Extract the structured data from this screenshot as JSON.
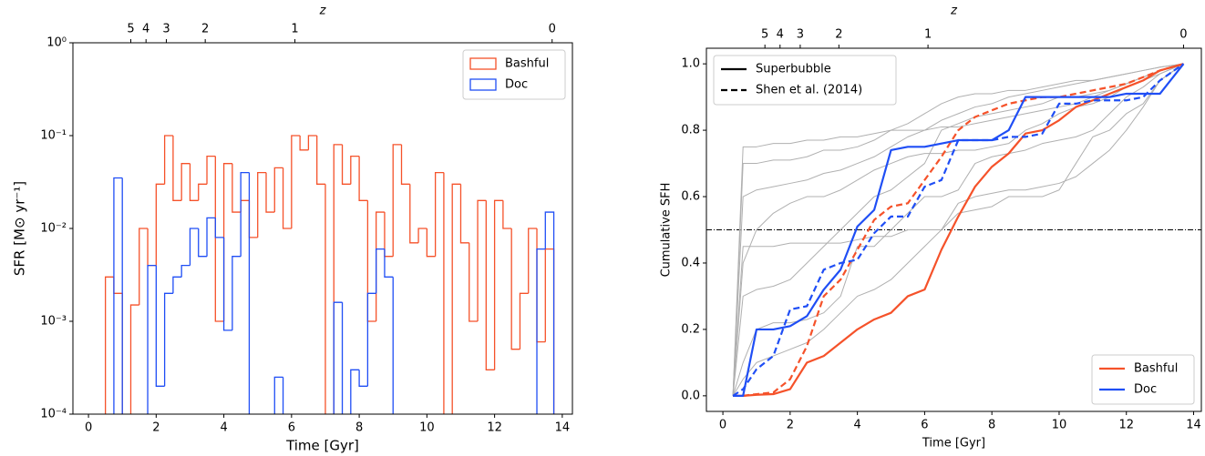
{
  "chart_data": [
    {
      "type": "histogram",
      "x_label": "Time [Gyr]",
      "y_label": "SFR [M⊙ yr⁻¹]",
      "top_label": "z",
      "log_y": true,
      "xlim": [
        -0.46,
        14.3
      ],
      "ylim": [
        0.0001,
        1
      ],
      "xticks": [
        0,
        2,
        4,
        6,
        8,
        10,
        12,
        14
      ],
      "yticks": [
        {
          "value": 0.0001,
          "label": "10⁻⁴"
        },
        {
          "value": 0.001,
          "label": "10⁻³"
        },
        {
          "value": 0.01,
          "label": "10⁻²"
        },
        {
          "value": 0.1,
          "label": "10⁻¹"
        },
        {
          "value": 1,
          "label": "10⁰"
        }
      ],
      "top_ticks": [
        {
          "value": 1.25,
          "label": "5"
        },
        {
          "value": 1.7,
          "label": "4"
        },
        {
          "value": 2.3,
          "label": "3"
        },
        {
          "value": 3.45,
          "label": "2"
        },
        {
          "value": 6.1,
          "label": "1"
        },
        {
          "value": 13.7,
          "label": "0"
        }
      ],
      "legend": "upper right",
      "bins": [
        0.25,
        0.5,
        0.75,
        1.0,
        1.25,
        1.5,
        1.75,
        2.0,
        2.25,
        2.5,
        2.75,
        3.0,
        3.25,
        3.5,
        3.75,
        4.0,
        4.25,
        4.5,
        4.75,
        5.0,
        5.25,
        5.5,
        5.75,
        6.0,
        6.25,
        6.5,
        6.75,
        7.0,
        7.25,
        7.5,
        7.75,
        8.0,
        8.25,
        8.5,
        8.75,
        9.0,
        9.25,
        9.5,
        9.75,
        10.0,
        10.25,
        10.5,
        10.75,
        11.0,
        11.25,
        11.5,
        11.75,
        12.0,
        12.25,
        12.5,
        12.75,
        13.0,
        13.25,
        13.5,
        13.75
      ],
      "series": [
        {
          "name": "Bashful",
          "color": "#f5522a",
          "values": [
            0,
            0.003,
            0.002,
            0,
            0.0015,
            0.01,
            0.004,
            0.03,
            0.1,
            0.02,
            0.05,
            0.02,
            0.03,
            0.06,
            0.001,
            0.05,
            0.015,
            0.02,
            0.008,
            0.04,
            0.015,
            0.045,
            0.01,
            0.1,
            0.07,
            0.1,
            0.03,
            0,
            0.08,
            0.03,
            0.06,
            0.02,
            0.001,
            0.015,
            0.005,
            0.08,
            0.03,
            0.007,
            0.01,
            0.005,
            0.04,
            0,
            0.03,
            0.007,
            0.001,
            0.02,
            0.0003,
            0.02,
            0.01,
            0.0005,
            0.002,
            0.01,
            0.0006,
            0.006
          ]
        },
        {
          "name": "Doc",
          "color": "#1f4ef5",
          "values": [
            0,
            0,
            0.035,
            0,
            0,
            0,
            0.004,
            0.0002,
            0.002,
            0.003,
            0.004,
            0.01,
            0.005,
            0.013,
            0.008,
            0.0008,
            0.005,
            0.04,
            0,
            0,
            0,
            0.00025,
            0,
            0,
            0,
            0,
            0,
            0,
            0.0016,
            0,
            0.0003,
            0.0002,
            0.002,
            0.006,
            0.003,
            0,
            0,
            0,
            0,
            0,
            0,
            0,
            0,
            0,
            0,
            0,
            0,
            0,
            0,
            0,
            0,
            0,
            0.006,
            0.015
          ]
        }
      ]
    },
    {
      "type": "line",
      "x_label": "Time [Gyr]",
      "y_label": "Cumulative SFH",
      "top_label": "z",
      "xlim": [
        -0.49,
        14.23
      ],
      "ylim": [
        -0.047,
        1.047
      ],
      "xticks": [
        0,
        2,
        4,
        6,
        8,
        10,
        12,
        14
      ],
      "yticks": [
        {
          "value": 0,
          "label": "0.0"
        },
        0.2,
        0.4,
        0.6,
        0.8,
        {
          "value": 1,
          "label": "1.0"
        }
      ],
      "top_ticks": [
        {
          "value": 1.25,
          "label": "5"
        },
        {
          "value": 1.7,
          "label": "4"
        },
        {
          "value": 2.3,
          "label": "3"
        },
        {
          "value": 3.45,
          "label": "2"
        },
        {
          "value": 6.1,
          "label": "1"
        },
        {
          "value": 13.7,
          "label": "0"
        }
      ],
      "hline": 0.5,
      "legend": "lower right",
      "style_legend": [
        {
          "label": "Superbubble",
          "dashed": false
        },
        {
          "label": "Shen et al. (2014)",
          "dashed": true
        }
      ],
      "style_legend_corner": "upper left",
      "x": [
        0.3,
        0.6,
        1.0,
        1.5,
        2.0,
        2.5,
        3.0,
        3.5,
        4.0,
        4.5,
        5.0,
        5.5,
        6.0,
        6.5,
        7.0,
        7.5,
        8.0,
        8.5,
        9.0,
        9.5,
        10,
        10.5,
        11,
        11.5,
        12,
        12.5,
        13,
        13.7
      ],
      "series": [
        {
          "color": "#b0b0b0",
          "dashed": false,
          "values": [
            0,
            0.75,
            0.75,
            0.76,
            0.76,
            0.77,
            0.77,
            0.78,
            0.78,
            0.79,
            0.8,
            0.8,
            0.8,
            0.81,
            0.81,
            0.82,
            0.83,
            0.84,
            0.85,
            0.86,
            0.87,
            0.88,
            0.9,
            0.92,
            0.94,
            0.96,
            0.98,
            1.0
          ]
        },
        {
          "color": "#b0b0b0",
          "dashed": false,
          "values": [
            0,
            0.45,
            0.45,
            0.45,
            0.46,
            0.46,
            0.46,
            0.46,
            0.47,
            0.48,
            0.48,
            0.5,
            0.5,
            0.5,
            0.55,
            0.56,
            0.57,
            0.6,
            0.6,
            0.6,
            0.62,
            0.7,
            0.78,
            0.8,
            0.85,
            0.88,
            0.95,
            1.0
          ]
        },
        {
          "color": "#b0b0b0",
          "dashed": false,
          "values": [
            0,
            0.3,
            0.32,
            0.33,
            0.35,
            0.4,
            0.45,
            0.5,
            0.55,
            0.6,
            0.62,
            0.66,
            0.7,
            0.8,
            0.82,
            0.84,
            0.85,
            0.86,
            0.87,
            0.88,
            0.9,
            0.9,
            0.91,
            0.92,
            0.94,
            0.96,
            0.98,
            1.0
          ]
        },
        {
          "color": "#b0b0b0",
          "dashed": false,
          "values": [
            0,
            0.1,
            0.2,
            0.22,
            0.22,
            0.23,
            0.25,
            0.3,
            0.45,
            0.45,
            0.5,
            0.55,
            0.6,
            0.6,
            0.62,
            0.7,
            0.72,
            0.73,
            0.74,
            0.76,
            0.77,
            0.78,
            0.8,
            0.85,
            0.9,
            0.93,
            0.97,
            1.0
          ]
        },
        {
          "color": "#b0b0b0",
          "dashed": false,
          "values": [
            0,
            0.6,
            0.62,
            0.63,
            0.64,
            0.65,
            0.67,
            0.68,
            0.7,
            0.72,
            0.75,
            0.78,
            0.8,
            0.83,
            0.85,
            0.87,
            0.88,
            0.9,
            0.91,
            0.92,
            0.93,
            0.94,
            0.95,
            0.96,
            0.97,
            0.98,
            0.99,
            1.0
          ]
        },
        {
          "color": "#b0b0b0",
          "dashed": false,
          "values": [
            0,
            0.05,
            0.1,
            0.12,
            0.14,
            0.16,
            0.2,
            0.25,
            0.3,
            0.32,
            0.35,
            0.4,
            0.45,
            0.5,
            0.58,
            0.6,
            0.61,
            0.62,
            0.62,
            0.63,
            0.64,
            0.66,
            0.7,
            0.74,
            0.8,
            0.87,
            0.95,
            1.0
          ]
        },
        {
          "color": "#b0b0b0",
          "dashed": false,
          "values": [
            0,
            0.7,
            0.7,
            0.71,
            0.71,
            0.72,
            0.74,
            0.74,
            0.75,
            0.77,
            0.8,
            0.82,
            0.85,
            0.88,
            0.9,
            0.91,
            0.91,
            0.92,
            0.92,
            0.93,
            0.94,
            0.95,
            0.95,
            0.96,
            0.97,
            0.98,
            0.99,
            1.0
          ]
        },
        {
          "color": "#b0b0b0",
          "dashed": false,
          "values": [
            0,
            0.4,
            0.5,
            0.55,
            0.58,
            0.6,
            0.6,
            0.62,
            0.65,
            0.68,
            0.7,
            0.72,
            0.73,
            0.73,
            0.74,
            0.74,
            0.75,
            0.76,
            0.8,
            0.82,
            0.85,
            0.87,
            0.88,
            0.9,
            0.93,
            0.95,
            0.97,
            1.0
          ]
        },
        {
          "name": "Bashful",
          "color": "#f5522a",
          "dashed": false,
          "values": [
            0,
            0,
            0.003,
            0.005,
            0.02,
            0.1,
            0.12,
            0.16,
            0.2,
            0.23,
            0.25,
            0.3,
            0.32,
            0.44,
            0.54,
            0.63,
            0.69,
            0.73,
            0.79,
            0.8,
            0.83,
            0.87,
            0.89,
            0.91,
            0.93,
            0.95,
            0.98,
            1.0
          ]
        },
        {
          "color": "#f5522a",
          "dashed": true,
          "values": [
            0,
            0,
            0.005,
            0.01,
            0.05,
            0.15,
            0.3,
            0.35,
            0.44,
            0.53,
            0.57,
            0.58,
            0.65,
            0.72,
            0.8,
            0.84,
            0.86,
            0.88,
            0.89,
            0.9,
            0.9,
            0.91,
            0.92,
            0.93,
            0.94,
            0.96,
            0.98,
            1.0
          ]
        },
        {
          "name": "Doc",
          "color": "#1f4ef5",
          "dashed": false,
          "values": [
            0,
            0,
            0.2,
            0.2,
            0.21,
            0.24,
            0.32,
            0.38,
            0.51,
            0.56,
            0.74,
            0.75,
            0.75,
            0.76,
            0.77,
            0.77,
            0.77,
            0.8,
            0.9,
            0.9,
            0.9,
            0.9,
            0.9,
            0.9,
            0.91,
            0.91,
            0.91,
            1.0
          ]
        },
        {
          "color": "#1f4ef5",
          "dashed": true,
          "values": [
            0,
            0.02,
            0.08,
            0.12,
            0.26,
            0.27,
            0.38,
            0.4,
            0.41,
            0.49,
            0.54,
            0.54,
            0.63,
            0.65,
            0.77,
            0.77,
            0.77,
            0.78,
            0.78,
            0.79,
            0.88,
            0.88,
            0.89,
            0.89,
            0.89,
            0.9,
            0.95,
            1.0
          ]
        }
      ]
    }
  ]
}
